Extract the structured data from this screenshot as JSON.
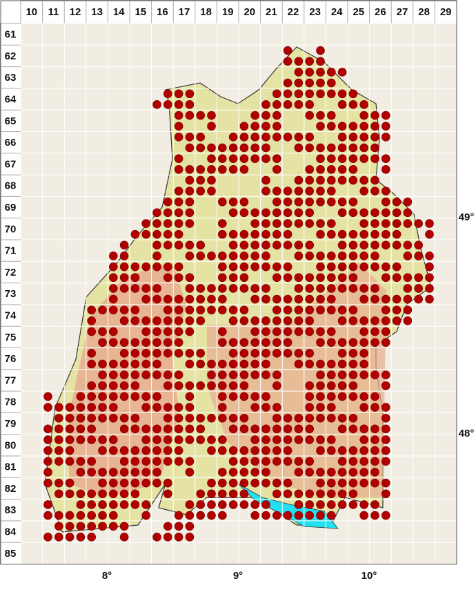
{
  "columns": [
    10,
    11,
    12,
    13,
    14,
    15,
    16,
    17,
    18,
    19,
    20,
    21,
    22,
    23,
    24,
    25,
    26,
    27,
    28,
    29
  ],
  "rows": [
    61,
    62,
    63,
    64,
    65,
    66,
    67,
    68,
    69,
    70,
    71,
    72,
    73,
    74,
    75,
    76,
    77,
    78,
    79,
    80,
    81,
    82,
    83,
    84,
    85
  ],
  "longitudes": [
    "8°",
    "9°",
    "10°"
  ],
  "latitudes": [
    "49°",
    "48°"
  ],
  "occurrences": [
    {
      "row": 62,
      "cols": [
        22,
        23
      ]
    },
    {
      "row": 63,
      "cols": [
        22,
        23,
        24
      ]
    },
    {
      "row": 64,
      "cols": [
        16,
        17,
        21,
        22,
        23,
        24,
        25
      ]
    },
    {
      "row": 65,
      "cols": [
        17,
        18,
        20,
        21,
        23,
        24,
        25,
        26
      ]
    },
    {
      "row": 66,
      "cols": [
        17,
        18,
        19,
        20,
        21,
        22,
        23,
        24,
        25,
        26
      ]
    },
    {
      "row": 67,
      "cols": [
        17,
        18,
        19,
        20,
        21,
        23,
        24,
        25,
        26
      ]
    },
    {
      "row": 68,
      "cols": [
        17,
        18,
        21,
        22,
        23,
        24,
        25,
        26
      ]
    },
    {
      "row": 69,
      "cols": [
        16,
        17,
        19,
        20,
        21,
        22,
        23,
        24,
        25,
        26,
        27
      ]
    },
    {
      "row": 70,
      "cols": [
        15,
        16,
        17,
        19,
        20,
        21,
        22,
        23,
        24,
        25,
        26,
        27,
        28
      ]
    },
    {
      "row": 71,
      "cols": [
        14,
        16,
        17,
        18,
        19,
        20,
        21,
        22,
        23,
        24,
        25,
        26,
        27,
        28
      ]
    },
    {
      "row": 72,
      "cols": [
        14,
        15,
        16,
        17,
        19,
        20,
        21,
        22,
        23,
        24,
        25,
        26,
        27,
        28
      ]
    },
    {
      "row": 73,
      "cols": [
        14,
        15,
        16,
        17,
        18,
        19,
        20,
        21,
        22,
        23,
        24,
        25,
        26,
        27,
        28
      ]
    },
    {
      "row": 74,
      "cols": [
        13,
        14,
        15,
        16,
        17,
        18,
        19,
        20,
        21,
        22,
        23,
        24,
        25,
        26,
        27
      ]
    },
    {
      "row": 75,
      "cols": [
        13,
        14,
        15,
        16,
        17,
        19,
        20,
        21,
        22,
        23,
        24,
        25,
        26
      ]
    },
    {
      "row": 76,
      "cols": [
        13,
        14,
        15,
        16,
        17,
        18,
        19,
        20,
        21,
        22,
        23,
        24,
        25
      ]
    },
    {
      "row": 77,
      "cols": [
        13,
        14,
        15,
        16,
        17,
        18,
        19,
        20,
        21,
        23,
        24,
        25,
        26
      ]
    },
    {
      "row": 78,
      "cols": [
        11,
        12,
        13,
        14,
        15,
        16,
        17,
        19,
        20,
        21,
        23,
        24,
        25,
        26
      ]
    },
    {
      "row": 79,
      "cols": [
        11,
        12,
        13,
        14,
        15,
        16,
        17,
        18,
        19,
        20,
        21,
        22,
        23,
        24,
        25,
        26
      ]
    },
    {
      "row": 80,
      "cols": [
        11,
        12,
        13,
        14,
        15,
        16,
        17,
        18,
        19,
        20,
        21,
        22,
        23,
        24,
        25,
        26
      ]
    },
    {
      "row": 81,
      "cols": [
        11,
        12,
        13,
        14,
        15,
        16,
        17,
        19,
        20,
        21,
        22,
        23,
        24,
        25,
        26
      ]
    },
    {
      "row": 82,
      "cols": [
        11,
        12,
        13,
        14,
        15,
        16,
        18,
        19,
        20,
        21,
        22,
        23,
        24,
        25,
        26
      ]
    },
    {
      "row": 83,
      "cols": [
        11,
        12,
        13,
        14,
        15,
        17,
        18,
        19,
        20,
        21,
        22,
        23,
        24,
        25,
        26
      ]
    },
    {
      "row": 84,
      "cols": [
        11,
        12,
        13,
        14,
        16,
        17
      ]
    }
  ]
}
